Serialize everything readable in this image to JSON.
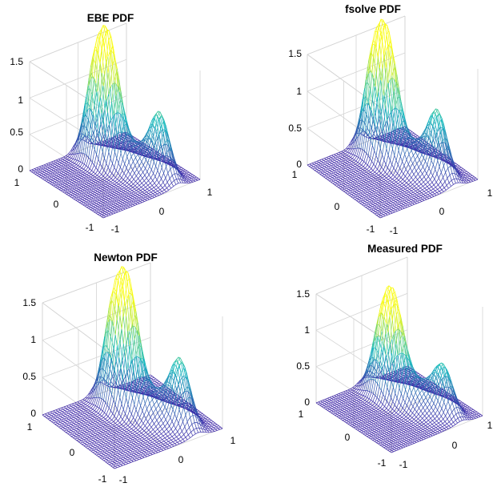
{
  "figure": {
    "colormap": "parula",
    "mesh_color_low": "#3e26a8",
    "mesh_color_mid": "#17bbc0",
    "mesh_color_high": "#f9fb0e",
    "axes_color": "#d4d4d4"
  },
  "chart_data": [
    {
      "type": "surface",
      "title": "EBE PDF",
      "xlim": [
        -1,
        1
      ],
      "ylim": [
        -1,
        1
      ],
      "zlim": [
        0,
        1.5
      ],
      "xticks": [
        -1,
        0,
        1
      ],
      "yticks": [
        -1,
        0,
        1
      ],
      "zticks": [
        0,
        0.5,
        1,
        1.5
      ],
      "xtick_labels": [
        "-1",
        "0",
        "1"
      ],
      "ytick_labels": [
        "-1",
        "0",
        "1"
      ],
      "ztick_labels": [
        "0",
        "0.5",
        "1",
        "1.5"
      ],
      "grid": true,
      "peaks": [
        {
          "x": 0.0,
          "y": 0.55,
          "height": 1.17
        },
        {
          "x": 0.15,
          "y": 0.35,
          "height": 1.45
        },
        {
          "x": 0.55,
          "y": -0.5,
          "height": 0.83
        }
      ]
    },
    {
      "type": "surface",
      "title": "fsolve PDF",
      "xlim": [
        -1,
        1
      ],
      "ylim": [
        -1,
        1
      ],
      "zlim": [
        0,
        1.5
      ],
      "xticks": [
        -1,
        0,
        1
      ],
      "yticks": [
        -1,
        0,
        1
      ],
      "zticks": [
        0,
        0.5,
        1,
        1.5
      ],
      "xtick_labels": [
        "-1",
        "0",
        "1"
      ],
      "ytick_labels": [
        "-1",
        "0",
        "1"
      ],
      "ztick_labels": [
        "0",
        "0.5",
        "1",
        "1.5"
      ],
      "grid": true,
      "peaks": [
        {
          "x": 0.0,
          "y": 0.55,
          "height": 1.17
        },
        {
          "x": 0.15,
          "y": 0.35,
          "height": 1.45
        },
        {
          "x": 0.55,
          "y": -0.5,
          "height": 0.83
        }
      ]
    },
    {
      "type": "surface",
      "title": "Newton PDF",
      "xlim": [
        -1,
        1
      ],
      "ylim": [
        -1,
        1
      ],
      "zlim": [
        0,
        1.5
      ],
      "xticks": [
        -1,
        0,
        1
      ],
      "yticks": [
        -1,
        0,
        1
      ],
      "zticks": [
        0,
        0.5,
        1,
        1.5
      ],
      "xtick_labels": [
        "-1",
        "0",
        "1"
      ],
      "ytick_labels": [
        "-1",
        "0",
        "1"
      ],
      "ztick_labels": [
        "0",
        "0.5",
        "1",
        "1.5"
      ],
      "grid": true,
      "peaks": [
        {
          "x": 0.0,
          "y": 0.55,
          "height": 1.17
        },
        {
          "x": 0.15,
          "y": 0.35,
          "height": 1.45
        },
        {
          "x": 0.55,
          "y": -0.5,
          "height": 0.83
        }
      ]
    },
    {
      "type": "surface",
      "title": "Measured PDF",
      "xlim": [
        -1,
        1
      ],
      "ylim": [
        -1,
        1
      ],
      "zlim": [
        0,
        1.5
      ],
      "xticks": [
        -1,
        0,
        1
      ],
      "yticks": [
        -1,
        0,
        1
      ],
      "zticks": [
        0,
        0.5,
        1,
        1.5
      ],
      "xtick_labels": [
        "-1",
        "0",
        "1"
      ],
      "ytick_labels": [
        "-1",
        "0",
        "1"
      ],
      "ztick_labels": [
        "0",
        "0.5",
        "1",
        "1.5"
      ],
      "grid": true,
      "peaks": [
        {
          "x": 0.0,
          "y": 0.5,
          "height": 0.8
        },
        {
          "x": 0.15,
          "y": 0.35,
          "height": 1.18
        },
        {
          "x": 0.55,
          "y": -0.5,
          "height": 0.6
        }
      ]
    }
  ]
}
